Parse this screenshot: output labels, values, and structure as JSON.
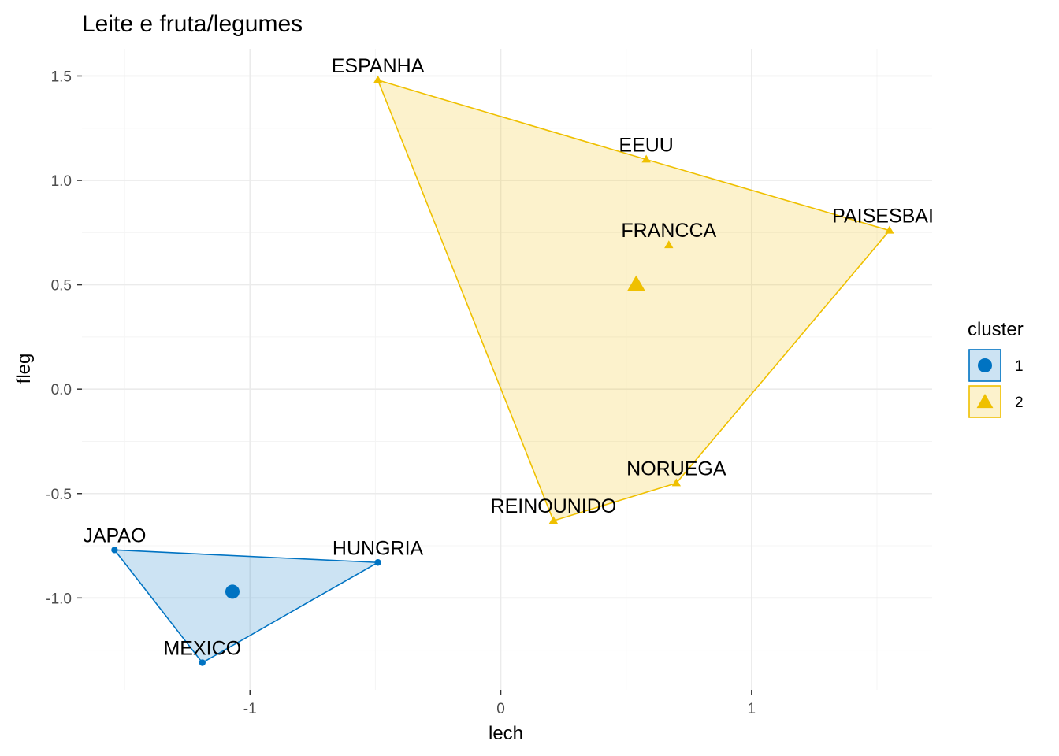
{
  "chart_data": {
    "type": "scatter",
    "title": "Leite e fruta/legumes",
    "xlabel": "lech",
    "ylabel": "fleg",
    "xlim": [
      -1.67,
      1.72
    ],
    "ylim": [
      -1.44,
      1.63
    ],
    "x_ticks": [
      -1,
      0,
      1
    ],
    "x_tick_labels": [
      "-1",
      "0",
      "1"
    ],
    "y_ticks": [
      -1.0,
      -0.5,
      0.0,
      0.5,
      1.0,
      1.5
    ],
    "y_tick_labels": [
      "-1.0",
      "-0.5",
      "0.0",
      "0.5",
      "1.0",
      "1.5"
    ],
    "grid": true,
    "legend": {
      "title": "cluster",
      "placement": "right",
      "entries": [
        "1",
        "2"
      ]
    },
    "colors": {
      "1": "#0073C2",
      "2": "#EFC000"
    },
    "clusters": [
      {
        "name": "1",
        "shape": "circle",
        "points": [
          {
            "label": "JAPAO",
            "x": -1.54,
            "y": -0.77
          },
          {
            "label": "HUNGRIA",
            "x": -0.49,
            "y": -0.83
          },
          {
            "label": "MEXICO",
            "x": -1.19,
            "y": -1.31
          }
        ],
        "hull": [
          "JAPAO",
          "HUNGRIA",
          "MEXICO"
        ],
        "center": {
          "x": -1.07,
          "y": -0.97
        }
      },
      {
        "name": "2",
        "shape": "triangle",
        "points": [
          {
            "label": "ESPANHA",
            "x": -0.49,
            "y": 1.48
          },
          {
            "label": "EEUU",
            "x": 0.58,
            "y": 1.1
          },
          {
            "label": "PAISESBAIX",
            "x": 1.55,
            "y": 0.76
          },
          {
            "label": "FRANCCA",
            "x": 0.67,
            "y": 0.69
          },
          {
            "label": "NORUEGA",
            "x": 0.7,
            "y": -0.45
          },
          {
            "label": "REINOUNIDO",
            "x": 0.21,
            "y": -0.63
          }
        ],
        "hull": [
          "ESPANHA",
          "EEUU",
          "PAISESBAIX",
          "NORUEGA",
          "REINOUNIDO"
        ],
        "center": {
          "x": 0.54,
          "y": 0.5
        }
      }
    ]
  }
}
